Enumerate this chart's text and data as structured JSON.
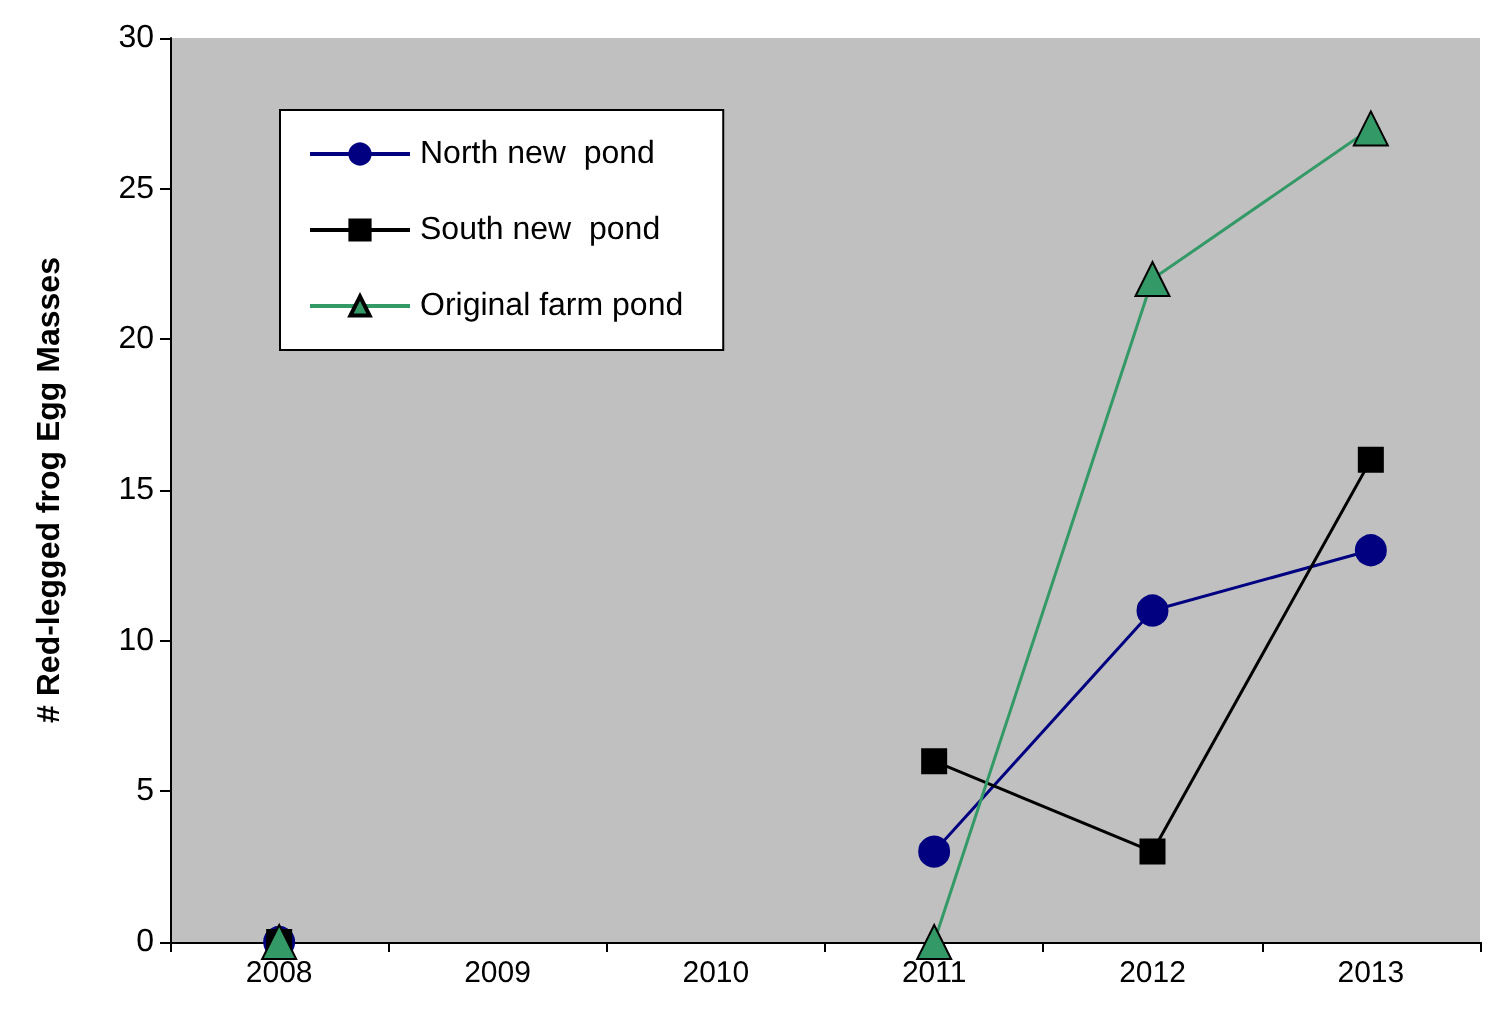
{
  "chart_data": {
    "type": "line",
    "ylabel": "# Red-legged frog Egg Masses",
    "categories": [
      "2008",
      "2009",
      "2010",
      "2011",
      "2012",
      "2013"
    ],
    "series": [
      {
        "name": "North new  pond",
        "color": "#000080",
        "marker": "circle",
        "values": [
          0,
          null,
          null,
          3,
          11,
          13
        ]
      },
      {
        "name": "South new  pond",
        "color": "#000000",
        "marker": "square",
        "values": [
          0,
          null,
          null,
          6,
          3,
          16
        ]
      },
      {
        "name": "Original farm pond",
        "color": "#339966",
        "marker": "triangle",
        "values": [
          0,
          null,
          null,
          0,
          22,
          27
        ]
      }
    ],
    "ylim": [
      0,
      30
    ],
    "yticks": [
      0,
      5,
      10,
      15,
      20,
      25,
      30
    ],
    "grid": false,
    "legend": "top left"
  }
}
